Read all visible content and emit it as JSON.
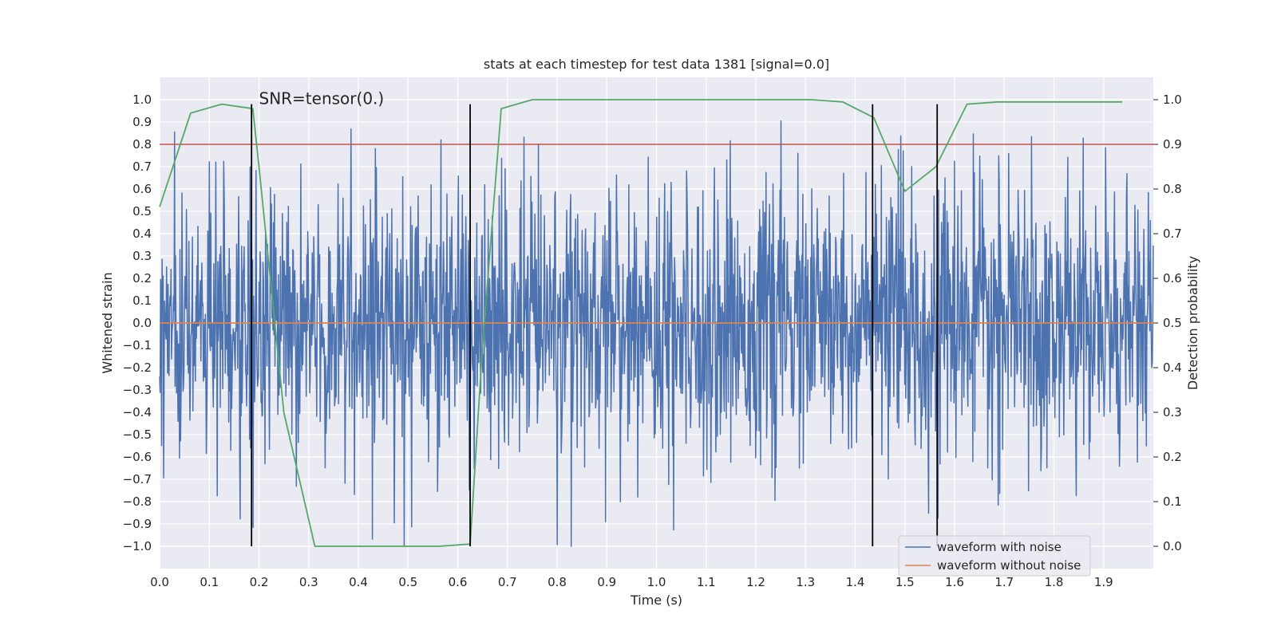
{
  "chart_data": {
    "type": "line",
    "title": "stats at each timestep for test data 1381 [signal=0.0]",
    "xlabel": "Time (s)",
    "ylabel": "Whitened strain",
    "y2label": "Detection probability",
    "annotation": "SNR=tensor(0.)",
    "xlim": [
      0.0,
      2.0
    ],
    "ylim": [
      -1.1,
      1.1
    ],
    "y2lim": [
      -0.05,
      1.05
    ],
    "grid": true,
    "legend_position": "lower-right",
    "xticks": [
      0.0,
      0.1,
      0.2,
      0.3,
      0.4,
      0.5,
      0.6,
      0.7,
      0.8,
      0.9,
      1.0,
      1.1,
      1.2,
      1.3,
      1.4,
      1.5,
      1.6,
      1.7,
      1.8,
      1.9
    ],
    "xtick_labels": [
      "0.0",
      "0.1",
      "0.2",
      "0.3",
      "0.4",
      "0.5",
      "0.6",
      "0.7",
      "0.8",
      "0.9",
      "1.0",
      "1.1",
      "1.2",
      "1.3",
      "1.4",
      "1.5",
      "1.6",
      "1.7",
      "1.8",
      "1.9"
    ],
    "yticks": [
      1.0,
      0.9,
      0.8,
      0.7,
      0.6,
      0.5,
      0.4,
      0.3,
      0.2,
      0.1,
      0.0,
      -0.1,
      -0.2,
      -0.3,
      -0.4,
      -0.5,
      -0.6,
      -0.7,
      -0.8,
      -0.9,
      -1.0
    ],
    "ytick_labels": [
      "1.0",
      "0.9",
      "0.8",
      "0.7",
      "0.6",
      "0.5",
      "0.4",
      "0.3",
      "0.2",
      "0.1",
      "0.0",
      "−0.1",
      "−0.2",
      "−0.3",
      "−0.4",
      "−0.5",
      "−0.6",
      "−0.7",
      "−0.8",
      "−0.9",
      "−1.0"
    ],
    "y2ticks": [
      1.0,
      0.9,
      0.8,
      0.7,
      0.6,
      0.5,
      0.4,
      0.3,
      0.2,
      0.1,
      0.0
    ],
    "y2tick_labels": [
      "1.0",
      "0.9",
      "0.8",
      "0.7",
      "0.6",
      "0.5",
      "0.4",
      "0.3",
      "0.2",
      "0.1",
      "0.0"
    ],
    "series": [
      {
        "name": "waveform with noise",
        "color": "#4c72b0",
        "axis": "left",
        "sample_count": 2000,
        "approx_amplitude": 0.3,
        "approx_range": [
          -1.0,
          1.0
        ]
      },
      {
        "name": "waveform without noise",
        "color": "#dd8452",
        "axis": "left",
        "x": [
          0.0,
          2.0
        ],
        "y": [
          0.0,
          0.0
        ]
      },
      {
        "name": "detection probability",
        "color": "#55a868",
        "axis": "right",
        "x": [
          0.0,
          0.0625,
          0.125,
          0.1875,
          0.2,
          0.25,
          0.3125,
          0.375,
          0.4375,
          0.5,
          0.5625,
          0.625,
          0.65,
          0.6875,
          0.75,
          0.8125,
          0.875,
          0.9375,
          1.0,
          1.0625,
          1.125,
          1.1875,
          1.25,
          1.3125,
          1.375,
          1.4375,
          1.5,
          1.5625,
          1.625,
          1.6875,
          1.75,
          1.8125,
          1.875,
          1.9375
        ],
        "y": [
          0.76,
          0.97,
          0.99,
          0.98,
          0.85,
          0.3,
          0.0,
          0.0,
          0.0,
          0.0,
          0.0,
          0.005,
          0.45,
          0.98,
          1.0,
          1.0,
          1.0,
          1.0,
          1.0,
          1.0,
          1.0,
          1.0,
          1.0,
          1.0,
          0.995,
          0.96,
          0.795,
          0.85,
          0.99,
          0.995,
          0.995,
          0.995,
          0.995,
          0.995
        ]
      }
    ],
    "threshold": {
      "value": 0.9,
      "axis": "right",
      "color": "#c44e52"
    },
    "vlines": [
      {
        "x": 0.185,
        "y_range": [
          -1.0,
          0.98
        ]
      },
      {
        "x": 0.625,
        "y_range": [
          -1.0,
          0.98
        ]
      },
      {
        "x": 1.435,
        "y_range": [
          -1.0,
          0.98
        ]
      },
      {
        "x": 1.565,
        "y_range": [
          -1.0,
          0.98
        ]
      }
    ],
    "legend": [
      {
        "label": "waveform with noise",
        "color": "#4c72b0"
      },
      {
        "label": "waveform without noise",
        "color": "#dd8452"
      }
    ]
  }
}
